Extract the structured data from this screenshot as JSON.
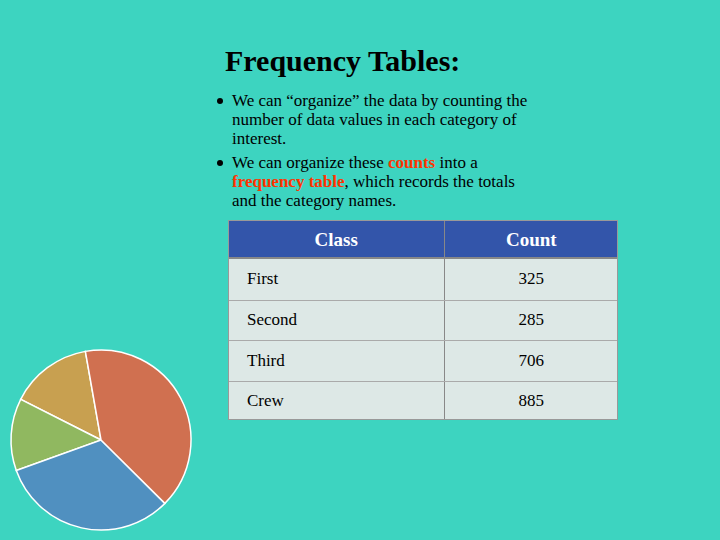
{
  "chart_data": {
    "type": "pie",
    "title": "Frequency Tables:",
    "annotations": [
      [
        [
          {
            "text": "We can “organize” the data by counting the"
          }
        ],
        [
          {
            "text": "number of data values in each category of"
          }
        ],
        [
          {
            "text": "interest."
          }
        ]
      ],
      [
        [
          {
            "text": "We can organize these "
          },
          {
            "text": "counts",
            "color": "#ff3300"
          },
          {
            "text": " into a"
          }
        ],
        [
          {
            "text": "frequency table",
            "color": "#ff3300"
          },
          {
            "text": ", which records the totals"
          }
        ],
        [
          {
            "text": "and the category names."
          }
        ]
      ]
    ],
    "table_headers": [
      "Class",
      "Count"
    ],
    "categories": [
      "First",
      "Second",
      "Third",
      "Crew"
    ],
    "values": [
      325,
      285,
      706,
      885
    ],
    "colors": [
      "#c8a050",
      "#90b860",
      "#5090c0",
      "#d07050"
    ]
  }
}
